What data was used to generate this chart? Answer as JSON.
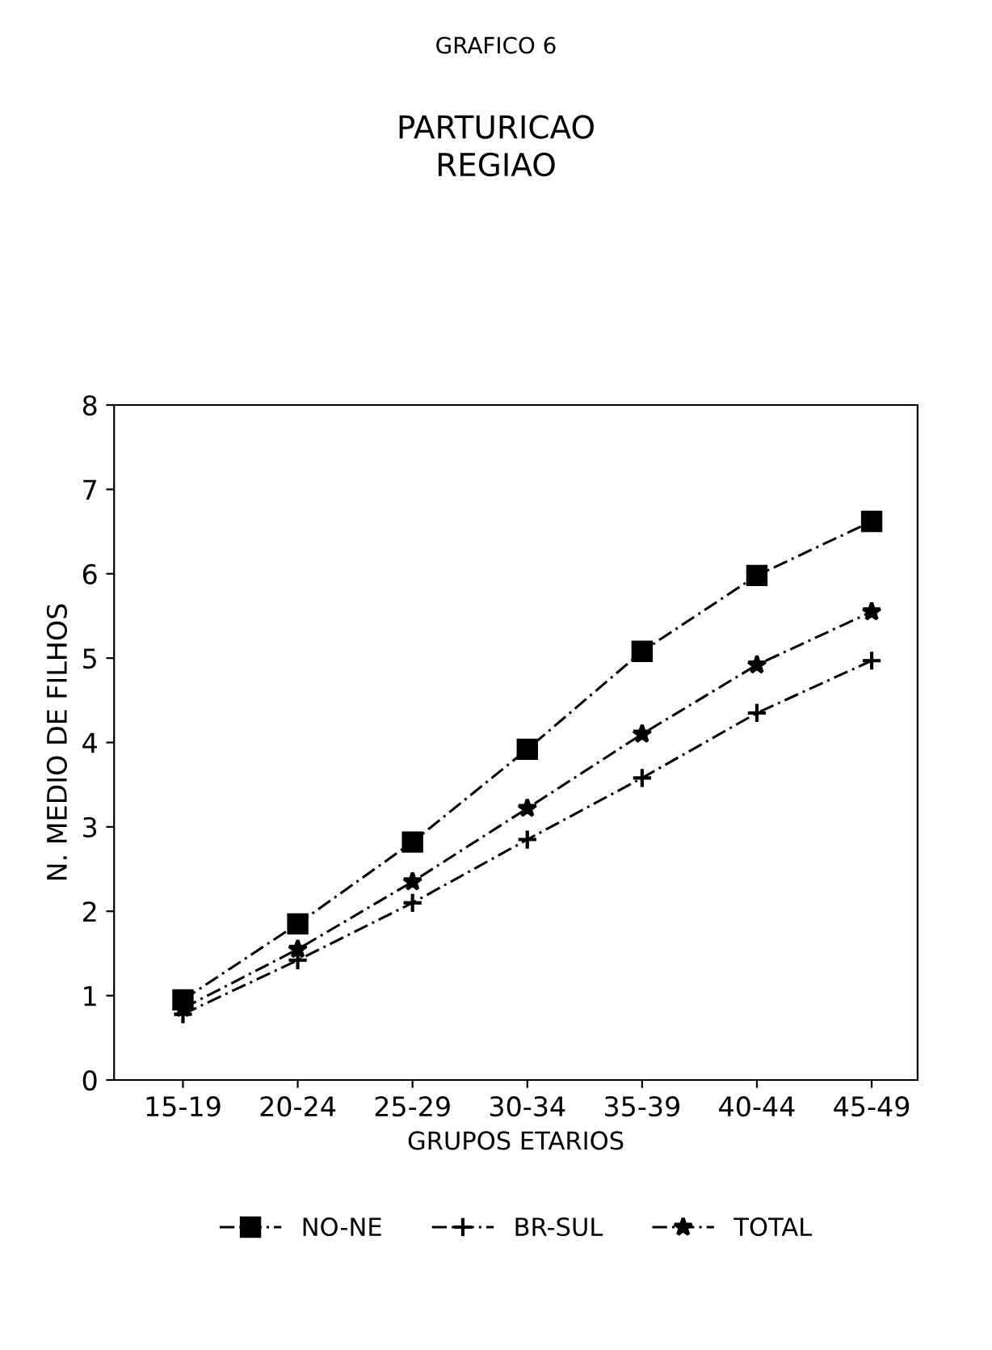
{
  "chart_data": {
    "type": "line",
    "title": "GRAFICO 6",
    "subtitle": "PARTURICAO\nREGIAO",
    "xlabel": "GRUPOS ETARIOS",
    "ylabel": "N. MEDIO DE FILHOS",
    "categories": [
      "15-19",
      "20-24",
      "25-29",
      "30-34",
      "35-39",
      "40-44",
      "45-49"
    ],
    "series": [
      {
        "name": "NO-NE",
        "color": "#000000",
        "marker": "square",
        "line_style": "dashed",
        "values": [
          0.95,
          1.85,
          2.82,
          3.92,
          5.08,
          5.98,
          6.62
        ]
      },
      {
        "name": "BR-SUL",
        "color": "#000000",
        "marker": "cross",
        "line_style": "dashed",
        "values": [
          0.78,
          1.42,
          2.1,
          2.85,
          3.58,
          4.35,
          4.97
        ]
      },
      {
        "name": "TOTAL",
        "color": "#000000",
        "marker": "star",
        "line_style": "dashed",
        "values": [
          0.85,
          1.55,
          2.35,
          3.22,
          4.1,
          4.92,
          5.55
        ]
      }
    ],
    "ylim": [
      0,
      8
    ],
    "yticks": [
      0,
      1,
      2,
      3,
      4,
      5,
      6,
      7,
      8
    ],
    "grid": false,
    "legend": "bottom"
  }
}
